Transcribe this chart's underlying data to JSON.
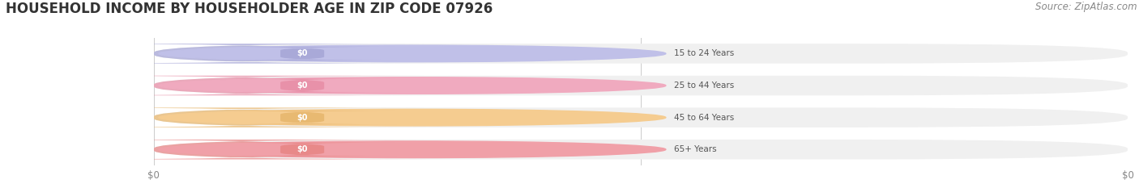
{
  "title": "HOUSEHOLD INCOME BY HOUSEHOLDER AGE IN ZIP CODE 07926",
  "source": "Source: ZipAtlas.com",
  "categories": [
    "15 to 24 Years",
    "25 to 44 Years",
    "45 to 64 Years",
    "65+ Years"
  ],
  "values": [
    0,
    0,
    0,
    0
  ],
  "bar_colors": [
    "#a8a8d8",
    "#e890a8",
    "#e8b870",
    "#e88888"
  ],
  "bar_bg_color": "#f0f0f0",
  "circle_colors": [
    "#c0c0e8",
    "#f0aabf",
    "#f5cc90",
    "#f0a0a8"
  ],
  "title_fontsize": 12,
  "source_fontsize": 8.5,
  "tick_label": "$0",
  "background_color": "#ffffff",
  "bar_height": 0.62,
  "value_label": "$0"
}
